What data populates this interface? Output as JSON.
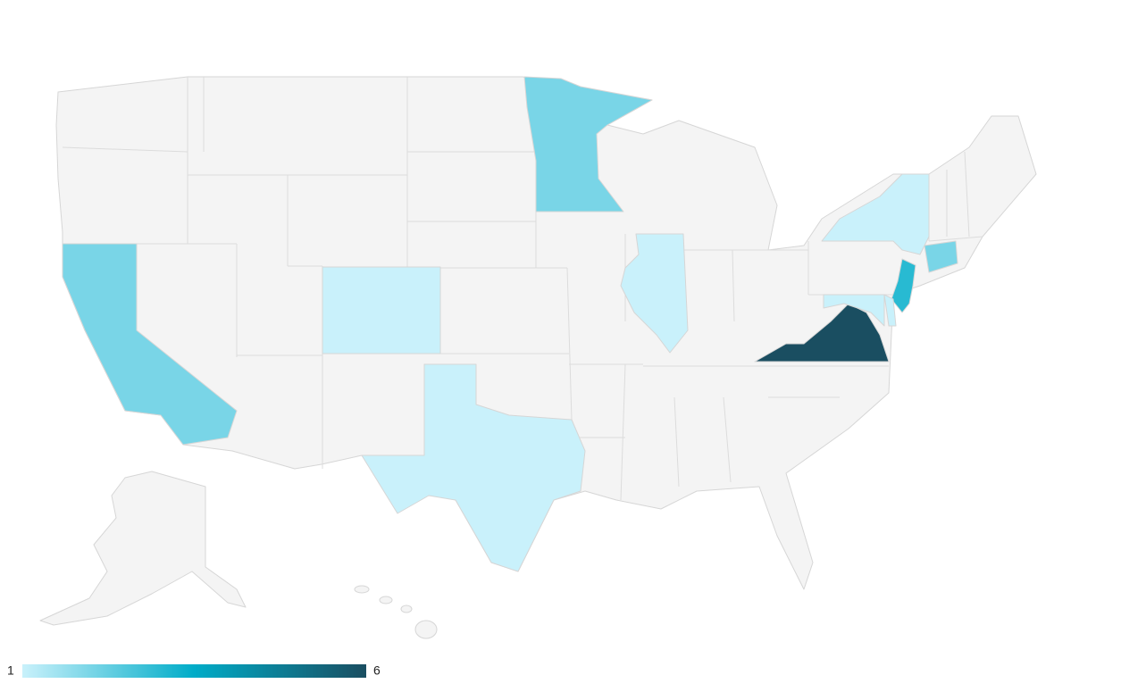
{
  "map": {
    "type": "choropleth",
    "values": [
      2,
      2,
      1,
      1,
      1,
      1,
      2,
      3,
      6,
      1,
      1
    ],
    "color_axis": {
      "min": 1,
      "max": 6,
      "colors": [
        "#c9f1fb",
        "#00acc8",
        "#1a4e61"
      ]
    },
    "no_data_color": "#f4f4f4"
  }
}
